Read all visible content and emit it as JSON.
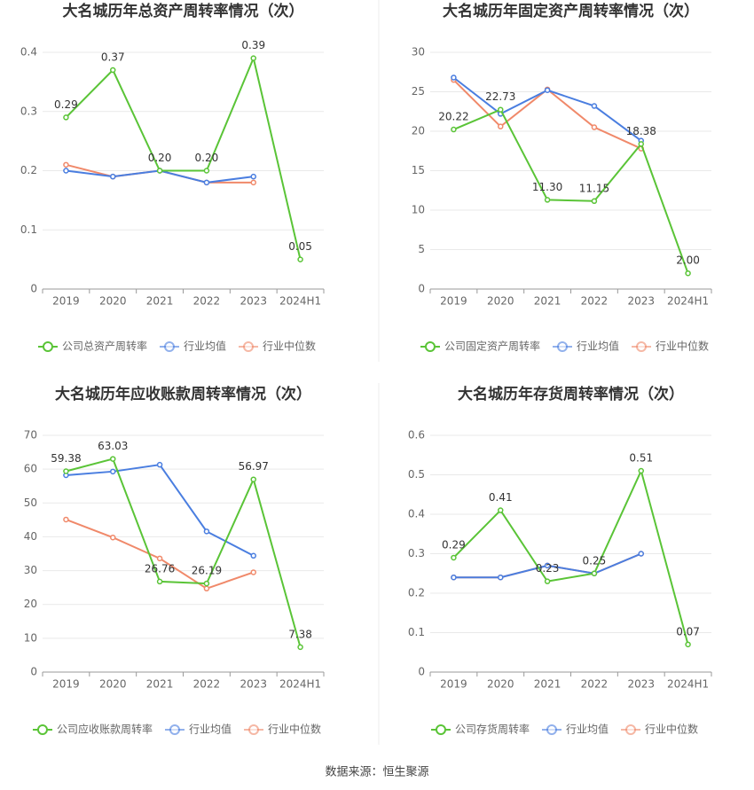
{
  "chart_data": [
    {
      "type": "line",
      "title": "大名城历年总资产周转率情况（次）",
      "categories": [
        "2019",
        "2020",
        "2021",
        "2022",
        "2023",
        "2024H1"
      ],
      "ylim": [
        0,
        0.4
      ],
      "yticks": [
        0,
        0.1,
        0.2,
        0.3,
        0.4
      ],
      "grid": true,
      "legend": "bottom",
      "series": [
        {
          "name": "公司总资产周转率",
          "color": "#5ac437",
          "values": [
            0.29,
            0.37,
            0.2,
            0.2,
            0.39,
            0.05
          ],
          "value_labels": [
            "0.29",
            "0.37",
            "0.20",
            "0.20",
            "0.39",
            "0.05"
          ]
        },
        {
          "name": "行业均值",
          "color": "#4a7ee0",
          "values": [
            0.2,
            0.19,
            0.2,
            0.18,
            0.19,
            null
          ]
        },
        {
          "name": "行业中位数",
          "color": "#f0896a",
          "values": [
            0.21,
            0.19,
            0.2,
            0.18,
            0.18,
            null
          ]
        }
      ]
    },
    {
      "type": "line",
      "title": "大名城历年固定资产周转率情况（次）",
      "categories": [
        "2019",
        "2020",
        "2021",
        "2022",
        "2023",
        "2024H1"
      ],
      "ylim": [
        0,
        30
      ],
      "yticks": [
        0,
        5,
        10,
        15,
        20,
        25,
        30
      ],
      "grid": true,
      "legend": "bottom",
      "series": [
        {
          "name": "公司固定资产周转率",
          "color": "#5ac437",
          "values": [
            20.22,
            22.73,
            11.3,
            11.15,
            18.38,
            2.0
          ],
          "value_labels": [
            "20.22",
            "22.73",
            "11.30",
            "11.15",
            "18.38",
            "2.00"
          ]
        },
        {
          "name": "行业均值",
          "color": "#4a7ee0",
          "values": [
            26.8,
            22.2,
            25.2,
            23.2,
            18.8,
            null
          ]
        },
        {
          "name": "行业中位数",
          "color": "#f0896a",
          "values": [
            26.5,
            20.6,
            25.3,
            20.5,
            17.8,
            null
          ]
        }
      ]
    },
    {
      "type": "line",
      "title": "大名城历年应收账款周转率情况（次）",
      "categories": [
        "2019",
        "2020",
        "2021",
        "2022",
        "2023",
        "2024H1"
      ],
      "ylim": [
        0,
        70
      ],
      "yticks": [
        0,
        10,
        20,
        30,
        40,
        50,
        60,
        70
      ],
      "grid": true,
      "legend": "bottom",
      "series": [
        {
          "name": "公司应收账款周转率",
          "color": "#5ac437",
          "values": [
            59.38,
            63.03,
            26.76,
            26.19,
            56.97,
            7.38
          ],
          "value_labels": [
            "59.38",
            "63.03",
            "26.76",
            "26.19",
            "56.97",
            "7.38"
          ]
        },
        {
          "name": "行业均值",
          "color": "#4a7ee0",
          "values": [
            58.2,
            59.3,
            61.3,
            41.6,
            34.4,
            null
          ]
        },
        {
          "name": "行业中位数",
          "color": "#f0896a",
          "values": [
            45.1,
            39.8,
            33.6,
            24.7,
            29.5,
            null
          ]
        }
      ]
    },
    {
      "type": "line",
      "title": "大名城历年存货周转率情况（次）",
      "categories": [
        "2019",
        "2020",
        "2021",
        "2022",
        "2023",
        "2024H1"
      ],
      "ylim": [
        0,
        0.6
      ],
      "yticks": [
        0,
        0.1,
        0.2,
        0.3,
        0.4,
        0.5,
        0.6
      ],
      "grid": true,
      "legend": "bottom",
      "series": [
        {
          "name": "公司存货周转率",
          "color": "#5ac437",
          "values": [
            0.29,
            0.41,
            0.23,
            0.25,
            0.51,
            0.07
          ],
          "value_labels": [
            "0.29",
            "0.41",
            "0.23",
            "0.25",
            "0.51",
            "0.07"
          ]
        },
        {
          "name": "行业均值",
          "color": "#4a7ee0",
          "values": [
            0.24,
            0.24,
            0.27,
            0.25,
            0.3,
            null
          ]
        },
        {
          "name": "行业中位数",
          "color": "#f0896a",
          "values": [
            0.24,
            0.24,
            0.27,
            0.25,
            0.3,
            null
          ]
        }
      ]
    }
  ],
  "source": "数据来源：恒生聚源"
}
